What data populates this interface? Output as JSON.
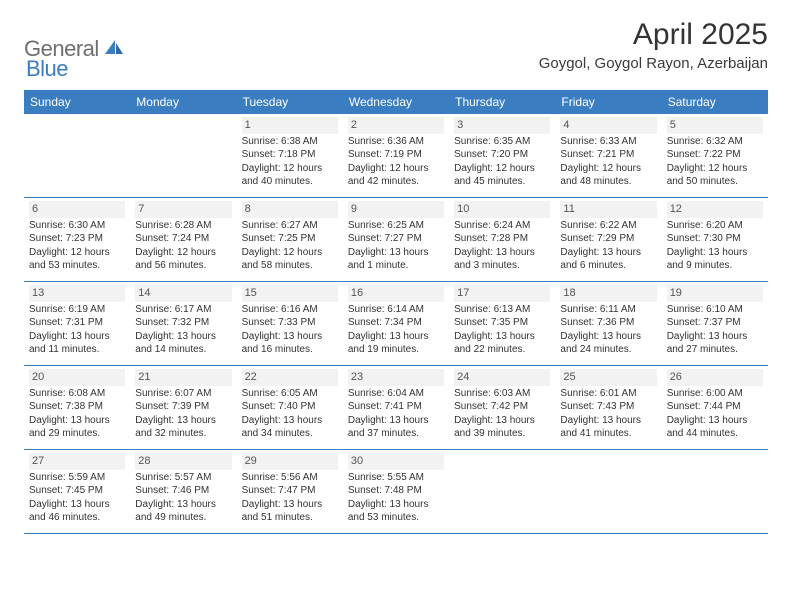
{
  "brand": {
    "text1": "General",
    "text2": "Blue"
  },
  "title": "April 2025",
  "location": "Goygol, Goygol Rayon, Azerbaijan",
  "colors": {
    "header_bg": "#3a7ec1",
    "header_text": "#ffffff",
    "row_border": "#3a7ec1",
    "daynum_bg": "#f2f2f2",
    "body_text": "#333333",
    "brand_gray": "#6f6f6f",
    "brand_blue": "#3a7ec1",
    "page_bg": "#ffffff"
  },
  "weekdays": [
    "Sunday",
    "Monday",
    "Tuesday",
    "Wednesday",
    "Thursday",
    "Friday",
    "Saturday"
  ],
  "weeks": [
    [
      null,
      null,
      {
        "n": "1",
        "sr": "Sunrise: 6:38 AM",
        "ss": "Sunset: 7:18 PM",
        "d1": "Daylight: 12 hours",
        "d2": "and 40 minutes."
      },
      {
        "n": "2",
        "sr": "Sunrise: 6:36 AM",
        "ss": "Sunset: 7:19 PM",
        "d1": "Daylight: 12 hours",
        "d2": "and 42 minutes."
      },
      {
        "n": "3",
        "sr": "Sunrise: 6:35 AM",
        "ss": "Sunset: 7:20 PM",
        "d1": "Daylight: 12 hours",
        "d2": "and 45 minutes."
      },
      {
        "n": "4",
        "sr": "Sunrise: 6:33 AM",
        "ss": "Sunset: 7:21 PM",
        "d1": "Daylight: 12 hours",
        "d2": "and 48 minutes."
      },
      {
        "n": "5",
        "sr": "Sunrise: 6:32 AM",
        "ss": "Sunset: 7:22 PM",
        "d1": "Daylight: 12 hours",
        "d2": "and 50 minutes."
      }
    ],
    [
      {
        "n": "6",
        "sr": "Sunrise: 6:30 AM",
        "ss": "Sunset: 7:23 PM",
        "d1": "Daylight: 12 hours",
        "d2": "and 53 minutes."
      },
      {
        "n": "7",
        "sr": "Sunrise: 6:28 AM",
        "ss": "Sunset: 7:24 PM",
        "d1": "Daylight: 12 hours",
        "d2": "and 56 minutes."
      },
      {
        "n": "8",
        "sr": "Sunrise: 6:27 AM",
        "ss": "Sunset: 7:25 PM",
        "d1": "Daylight: 12 hours",
        "d2": "and 58 minutes."
      },
      {
        "n": "9",
        "sr": "Sunrise: 6:25 AM",
        "ss": "Sunset: 7:27 PM",
        "d1": "Daylight: 13 hours",
        "d2": "and 1 minute."
      },
      {
        "n": "10",
        "sr": "Sunrise: 6:24 AM",
        "ss": "Sunset: 7:28 PM",
        "d1": "Daylight: 13 hours",
        "d2": "and 3 minutes."
      },
      {
        "n": "11",
        "sr": "Sunrise: 6:22 AM",
        "ss": "Sunset: 7:29 PM",
        "d1": "Daylight: 13 hours",
        "d2": "and 6 minutes."
      },
      {
        "n": "12",
        "sr": "Sunrise: 6:20 AM",
        "ss": "Sunset: 7:30 PM",
        "d1": "Daylight: 13 hours",
        "d2": "and 9 minutes."
      }
    ],
    [
      {
        "n": "13",
        "sr": "Sunrise: 6:19 AM",
        "ss": "Sunset: 7:31 PM",
        "d1": "Daylight: 13 hours",
        "d2": "and 11 minutes."
      },
      {
        "n": "14",
        "sr": "Sunrise: 6:17 AM",
        "ss": "Sunset: 7:32 PM",
        "d1": "Daylight: 13 hours",
        "d2": "and 14 minutes."
      },
      {
        "n": "15",
        "sr": "Sunrise: 6:16 AM",
        "ss": "Sunset: 7:33 PM",
        "d1": "Daylight: 13 hours",
        "d2": "and 16 minutes."
      },
      {
        "n": "16",
        "sr": "Sunrise: 6:14 AM",
        "ss": "Sunset: 7:34 PM",
        "d1": "Daylight: 13 hours",
        "d2": "and 19 minutes."
      },
      {
        "n": "17",
        "sr": "Sunrise: 6:13 AM",
        "ss": "Sunset: 7:35 PM",
        "d1": "Daylight: 13 hours",
        "d2": "and 22 minutes."
      },
      {
        "n": "18",
        "sr": "Sunrise: 6:11 AM",
        "ss": "Sunset: 7:36 PM",
        "d1": "Daylight: 13 hours",
        "d2": "and 24 minutes."
      },
      {
        "n": "19",
        "sr": "Sunrise: 6:10 AM",
        "ss": "Sunset: 7:37 PM",
        "d1": "Daylight: 13 hours",
        "d2": "and 27 minutes."
      }
    ],
    [
      {
        "n": "20",
        "sr": "Sunrise: 6:08 AM",
        "ss": "Sunset: 7:38 PM",
        "d1": "Daylight: 13 hours",
        "d2": "and 29 minutes."
      },
      {
        "n": "21",
        "sr": "Sunrise: 6:07 AM",
        "ss": "Sunset: 7:39 PM",
        "d1": "Daylight: 13 hours",
        "d2": "and 32 minutes."
      },
      {
        "n": "22",
        "sr": "Sunrise: 6:05 AM",
        "ss": "Sunset: 7:40 PM",
        "d1": "Daylight: 13 hours",
        "d2": "and 34 minutes."
      },
      {
        "n": "23",
        "sr": "Sunrise: 6:04 AM",
        "ss": "Sunset: 7:41 PM",
        "d1": "Daylight: 13 hours",
        "d2": "and 37 minutes."
      },
      {
        "n": "24",
        "sr": "Sunrise: 6:03 AM",
        "ss": "Sunset: 7:42 PM",
        "d1": "Daylight: 13 hours",
        "d2": "and 39 minutes."
      },
      {
        "n": "25",
        "sr": "Sunrise: 6:01 AM",
        "ss": "Sunset: 7:43 PM",
        "d1": "Daylight: 13 hours",
        "d2": "and 41 minutes."
      },
      {
        "n": "26",
        "sr": "Sunrise: 6:00 AM",
        "ss": "Sunset: 7:44 PM",
        "d1": "Daylight: 13 hours",
        "d2": "and 44 minutes."
      }
    ],
    [
      {
        "n": "27",
        "sr": "Sunrise: 5:59 AM",
        "ss": "Sunset: 7:45 PM",
        "d1": "Daylight: 13 hours",
        "d2": "and 46 minutes."
      },
      {
        "n": "28",
        "sr": "Sunrise: 5:57 AM",
        "ss": "Sunset: 7:46 PM",
        "d1": "Daylight: 13 hours",
        "d2": "and 49 minutes."
      },
      {
        "n": "29",
        "sr": "Sunrise: 5:56 AM",
        "ss": "Sunset: 7:47 PM",
        "d1": "Daylight: 13 hours",
        "d2": "and 51 minutes."
      },
      {
        "n": "30",
        "sr": "Sunrise: 5:55 AM",
        "ss": "Sunset: 7:48 PM",
        "d1": "Daylight: 13 hours",
        "d2": "and 53 minutes."
      },
      null,
      null,
      null
    ]
  ]
}
